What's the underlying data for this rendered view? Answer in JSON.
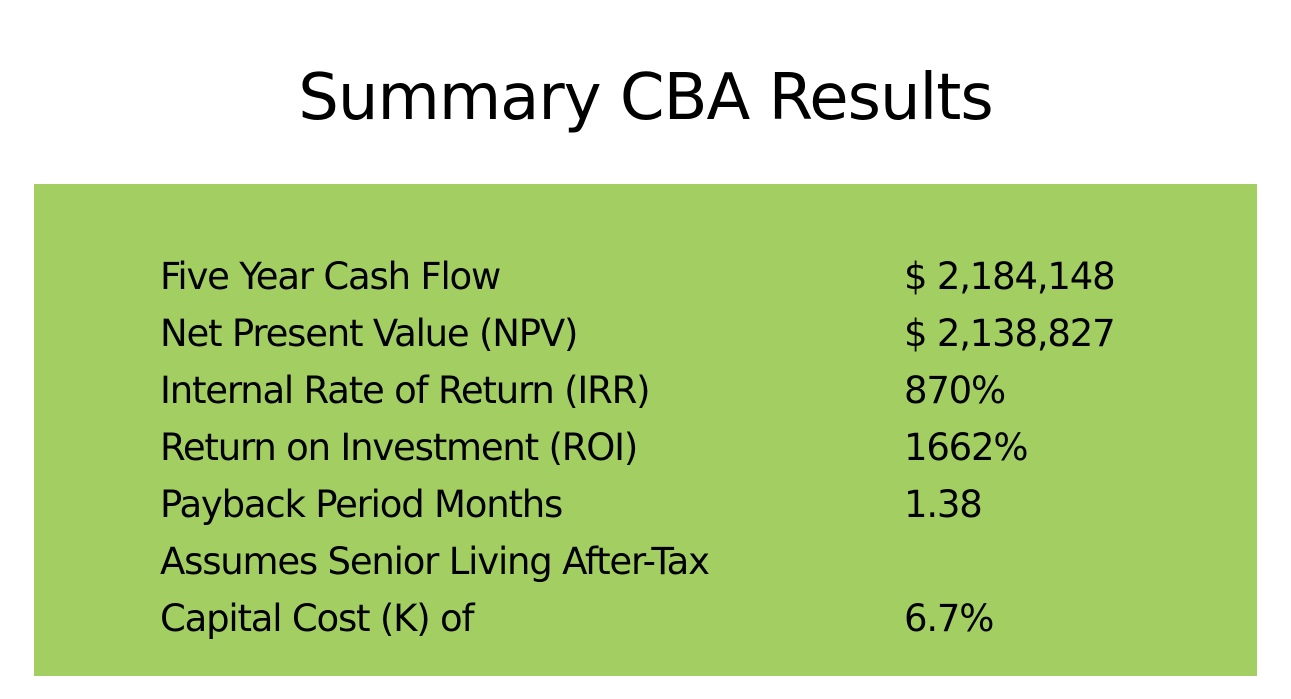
{
  "title": "Summary CBA Results",
  "colors": {
    "panel_background": "#a2ce62",
    "text": "#000000",
    "page_background": "#ffffff"
  },
  "rows": [
    {
      "label": "Five Year Cash Flow",
      "value": "$ 2,184,148"
    },
    {
      "label": "Net Present Value (NPV)",
      "value": "$ 2,138,827"
    },
    {
      "label": "Internal Rate of Return (IRR)",
      "value": "870%"
    },
    {
      "label": "Return on Investment (ROI)",
      "value": "1662%"
    },
    {
      "label": "Payback Period Months",
      "value": "1.38"
    },
    {
      "label": "Assumes Senior Living After-Tax",
      "value": ""
    },
    {
      "label": "Capital Cost (K) of",
      "value": "6.7%"
    }
  ]
}
